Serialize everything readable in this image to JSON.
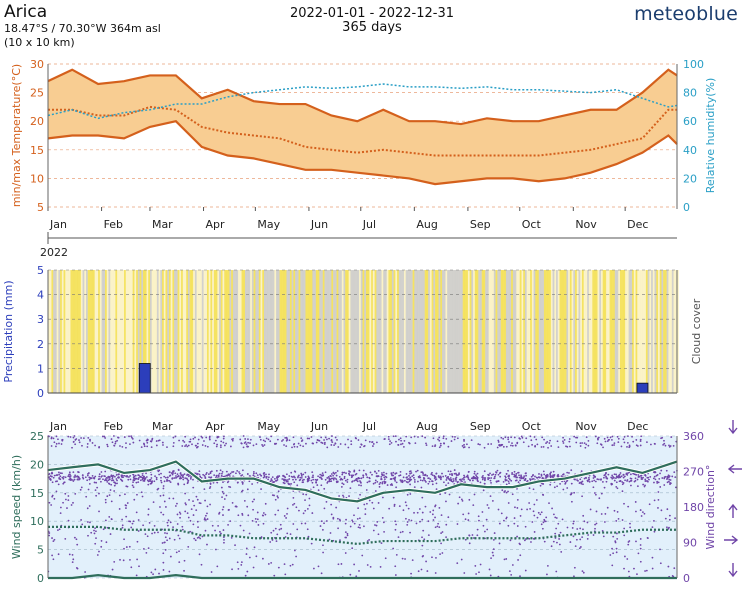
{
  "header": {
    "location": "Arica",
    "coordinates": "18.47°S / 70.30°W   364m asl",
    "grid": "(10 x 10 km)",
    "period": "2022-01-01 - 2022-12-31",
    "days": "365 days",
    "brand": "meteoblue"
  },
  "colors": {
    "temp": "#d4601c",
    "temp_fill": "#f8cd92",
    "humidity": "#2a9fc6",
    "precip": "#2c3ebb",
    "wind_line": "#2f6e5c",
    "wind_dir": "#7045a8",
    "wind_bg": "#e2f0fb",
    "sun": "#f4e04d",
    "cloud": "#cbcbcb"
  },
  "months": [
    "Jan",
    "Feb",
    "Mar",
    "Apr",
    "May",
    "Jun",
    "Jul",
    "Aug",
    "Sep",
    "Oct",
    "Nov",
    "Dec"
  ],
  "year_label": "2022",
  "chart_data": [
    {
      "type": "area",
      "ylabel": "min/max Temperature(°C)",
      "y2label": "Relative humidity(%)",
      "ylim": [
        5,
        30
      ],
      "y2lim": [
        0,
        100
      ],
      "yticks": [
        5,
        10,
        15,
        20,
        25,
        30
      ],
      "y2ticks": [
        0,
        20,
        40,
        60,
        80,
        100
      ],
      "x": [
        1,
        15,
        30,
        45,
        60,
        75,
        90,
        105,
        120,
        135,
        150,
        165,
        180,
        195,
        210,
        225,
        240,
        255,
        270,
        285,
        300,
        315,
        330,
        345,
        360,
        365
      ],
      "series": [
        {
          "name": "max",
          "values": [
            27,
            29,
            26.5,
            27,
            28,
            28,
            24,
            25.5,
            23.5,
            23,
            23,
            21,
            20,
            22,
            20,
            20,
            19.5,
            20.5,
            20,
            20,
            21,
            22,
            22,
            25,
            29,
            28
          ]
        },
        {
          "name": "mean",
          "values": [
            22,
            22,
            21,
            21,
            22.5,
            22,
            19,
            18,
            17.5,
            17,
            15.5,
            15,
            14.5,
            15,
            14.5,
            14,
            14,
            14,
            14,
            14,
            14.5,
            15,
            16,
            17,
            22,
            22
          ]
        },
        {
          "name": "min",
          "values": [
            17,
            17.5,
            17.5,
            17,
            19,
            20,
            15.5,
            14,
            13.5,
            12.5,
            11.5,
            11.5,
            11,
            10.5,
            10,
            9,
            9.5,
            10,
            10,
            9.5,
            10,
            11,
            12.5,
            14.5,
            17.5,
            16
          ]
        },
        {
          "name": "humidity",
          "values": [
            64,
            68,
            62,
            66,
            68,
            72,
            72,
            77,
            80,
            82,
            84,
            83,
            84,
            86,
            84,
            84,
            83,
            84,
            82,
            82,
            81,
            80,
            82,
            76,
            70,
            71
          ]
        }
      ]
    },
    {
      "type": "bar",
      "ylabel": "Precipitation (mm)",
      "y2label": "Cloud cover",
      "ylim": [
        0,
        5
      ],
      "yticks": [
        0,
        1,
        2,
        3,
        4,
        5
      ],
      "x": [
        57,
        345
      ],
      "values": [
        1.2,
        0.4
      ]
    },
    {
      "type": "scatter",
      "ylabel": "Wind speed (km/h)",
      "y2label": "Wind direction°",
      "ylim": [
        0,
        25
      ],
      "y2lim": [
        0,
        360
      ],
      "yticks": [
        0,
        5,
        10,
        15,
        20,
        25
      ],
      "y2ticks": [
        0,
        90,
        180,
        270,
        360
      ],
      "x": [
        1,
        15,
        30,
        45,
        60,
        75,
        90,
        105,
        120,
        135,
        150,
        165,
        180,
        195,
        210,
        225,
        240,
        255,
        270,
        285,
        300,
        315,
        330,
        345,
        360,
        365
      ],
      "series": [
        {
          "name": "max",
          "values": [
            19,
            19.5,
            20,
            18.5,
            19,
            20.5,
            17,
            17.5,
            17.5,
            16,
            15.5,
            14,
            13.5,
            15,
            15.5,
            15,
            16.5,
            16,
            16,
            17,
            17.5,
            18.5,
            19.5,
            18.5,
            20,
            20.5
          ]
        },
        {
          "name": "mean",
          "values": [
            9,
            9,
            9,
            8.5,
            8.5,
            8.5,
            7.5,
            7.5,
            7,
            7,
            7,
            6.5,
            6,
            6.5,
            6.5,
            6.5,
            7,
            7,
            7,
            7,
            7.5,
            8,
            8,
            8.5,
            8.5,
            8.5
          ]
        },
        {
          "name": "min",
          "values": [
            0,
            0,
            0.5,
            0,
            0,
            0.5,
            0,
            0,
            0,
            0,
            0,
            0,
            0,
            0,
            0,
            0,
            0,
            0,
            0,
            0,
            0,
            0,
            0,
            0,
            0,
            0
          ]
        }
      ]
    }
  ]
}
